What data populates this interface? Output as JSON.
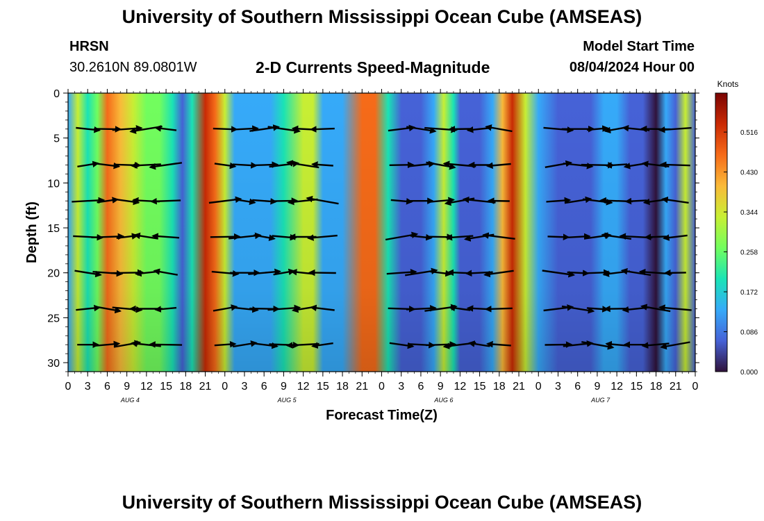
{
  "header": {
    "title": "University of Southern Mississippi Ocean Cube (AMSEAS)",
    "station": "HRSN",
    "coords": "30.2610N  89.0801W",
    "product": "2-D Currents Speed-Magnitude",
    "model_label": "Model Start Time",
    "model_time": "08/04/2024 Hour 00"
  },
  "footer": {
    "title": "University of Southern Mississippi Ocean Cube (AMSEAS)"
  },
  "chart_data": {
    "type": "heatmap",
    "title": "2-D Currents Speed-Magnitude",
    "xlabel": "Forecast Time(Z)",
    "ylabel": "Depth (ft)",
    "x_hours_range": [
      0,
      96
    ],
    "y_range": [
      0,
      31
    ],
    "y_ticks": [
      0,
      5,
      10,
      15,
      20,
      25,
      30
    ],
    "x_tick_labels": [
      "0",
      "3",
      "6",
      "9",
      "12",
      "15",
      "18",
      "21",
      "0",
      "3",
      "6",
      "9",
      "12",
      "15",
      "18",
      "21",
      "0",
      "3",
      "6",
      "9",
      "12",
      "15",
      "18",
      "21",
      "0",
      "3",
      "6",
      "9",
      "12",
      "15",
      "18",
      "21",
      "0"
    ],
    "day_labels": [
      {
        "label": "AUG 4",
        "hour": 9.5
      },
      {
        "label": "AUG 5",
        "hour": 33.5
      },
      {
        "label": "AUG 6",
        "hour": 57.5
      },
      {
        "label": "AUG 7",
        "hour": 81.5
      }
    ],
    "colorbar": {
      "label": "Knots",
      "ticks": [
        "0.516",
        "0.430",
        "0.344",
        "0.258",
        "0.172",
        "0.086",
        "0.000"
      ],
      "min": 0.0,
      "max": 0.6,
      "colors": [
        "#30123b",
        "#4662d7",
        "#36aaf9",
        "#1ae4b6",
        "#72fe5e",
        "#c8ef34",
        "#faba39",
        "#f66b19",
        "#ca2a04",
        "#7a0403"
      ]
    },
    "speed_profile_surface_knots": [
      {
        "hour": 0,
        "v": 0.1
      },
      {
        "hour": 1.5,
        "v": 0.35
      },
      {
        "hour": 3,
        "v": 0.19
      },
      {
        "hour": 4.5,
        "v": 0.26
      },
      {
        "hour": 6,
        "v": 0.49
      },
      {
        "hour": 8,
        "v": 0.43
      },
      {
        "hour": 10,
        "v": 0.3
      },
      {
        "hour": 12,
        "v": 0.24
      },
      {
        "hour": 14,
        "v": 0.28
      },
      {
        "hour": 16,
        "v": 0.22
      },
      {
        "hour": 17.5,
        "v": 0.08
      },
      {
        "hour": 19,
        "v": 0.17
      },
      {
        "hour": 21,
        "v": 0.5
      },
      {
        "hour": 22.5,
        "v": 0.46
      },
      {
        "hour": 24,
        "v": 0.36
      },
      {
        "hour": 25.5,
        "v": 0.12
      },
      {
        "hour": 27,
        "v": 0.1
      },
      {
        "hour": 29,
        "v": 0.15
      },
      {
        "hour": 31,
        "v": 0.13
      },
      {
        "hour": 33,
        "v": 0.2
      },
      {
        "hour": 36,
        "v": 0.35
      },
      {
        "hour": 37.5,
        "v": 0.3
      },
      {
        "hour": 39,
        "v": 0.14
      },
      {
        "hour": 42,
        "v": 0.1
      },
      {
        "hour": 45,
        "v": 0.47
      },
      {
        "hour": 47,
        "v": 0.44
      },
      {
        "hour": 49,
        "v": 0.18
      },
      {
        "hour": 51,
        "v": 0.07
      },
      {
        "hour": 54,
        "v": 0.06
      },
      {
        "hour": 56,
        "v": 0.1
      },
      {
        "hour": 57.5,
        "v": 0.32
      },
      {
        "hour": 59,
        "v": 0.19
      },
      {
        "hour": 60,
        "v": 0.08
      },
      {
        "hour": 63,
        "v": 0.07
      },
      {
        "hour": 65,
        "v": 0.1
      },
      {
        "hour": 66.5,
        "v": 0.41
      },
      {
        "hour": 68,
        "v": 0.5
      },
      {
        "hour": 70,
        "v": 0.36
      },
      {
        "hour": 72,
        "v": 0.12
      },
      {
        "hour": 75,
        "v": 0.08
      },
      {
        "hour": 78,
        "v": 0.06
      },
      {
        "hour": 80,
        "v": 0.09
      },
      {
        "hour": 82,
        "v": 0.12
      },
      {
        "hour": 84,
        "v": 0.1
      },
      {
        "hour": 86,
        "v": 0.08
      },
      {
        "hour": 88,
        "v": 0.05
      },
      {
        "hour": 90,
        "v": 0.02
      },
      {
        "hour": 91.5,
        "v": 0.1
      },
      {
        "hour": 93,
        "v": 0.05
      },
      {
        "hour": 94.5,
        "v": 0.3
      },
      {
        "hour": 96,
        "v": 0.05
      }
    ],
    "vectors": {
      "depths_ft": [
        4,
        8,
        12,
        16,
        20,
        24,
        28
      ],
      "hours": [
        3,
        6,
        9,
        12,
        15,
        24,
        27,
        30,
        33,
        36,
        39,
        51,
        54,
        57,
        60,
        63,
        66,
        75,
        78,
        81,
        84,
        87,
        90,
        93
      ]
    }
  }
}
